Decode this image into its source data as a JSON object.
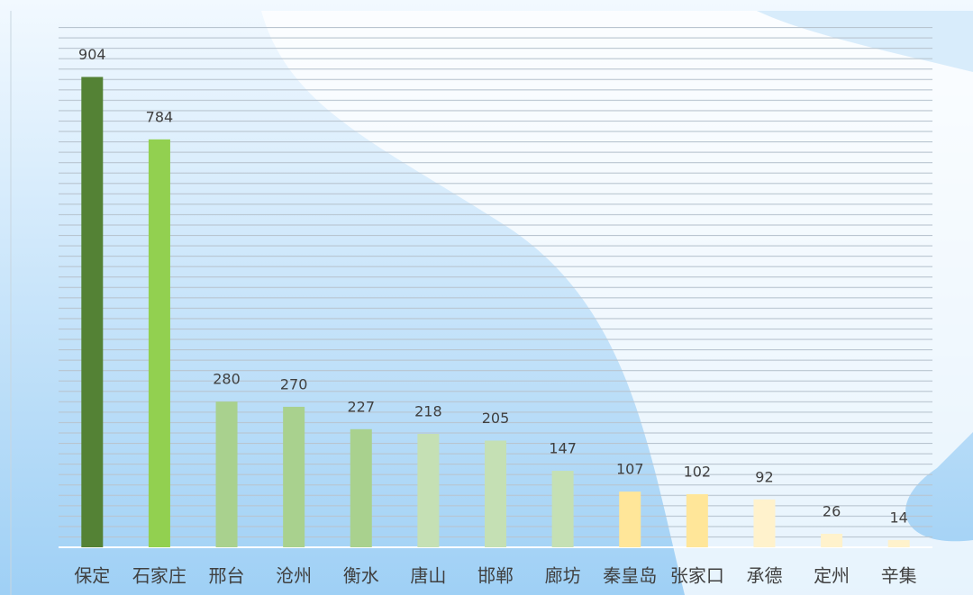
{
  "chart_data": {
    "type": "bar",
    "categories": [
      "保定",
      "石家庄",
      "邢台",
      "沧州",
      "衡水",
      "唐山",
      "邯郸",
      "廊坊",
      "秦皇岛",
      "张家口",
      "承德",
      "定州",
      "辛集"
    ],
    "values": [
      904,
      784,
      280,
      270,
      227,
      218,
      205,
      147,
      107,
      102,
      92,
      26,
      14
    ],
    "colors": [
      "#548235",
      "#92d050",
      "#a9d18e",
      "#a9d18e",
      "#a9d18e",
      "#c5e0b4",
      "#c5e0b4",
      "#c5e0b4",
      "#ffe699",
      "#ffe699",
      "#fff2cc",
      "#fff2cc",
      "#fff2cc"
    ],
    "ylim": [
      0,
      1000
    ]
  }
}
